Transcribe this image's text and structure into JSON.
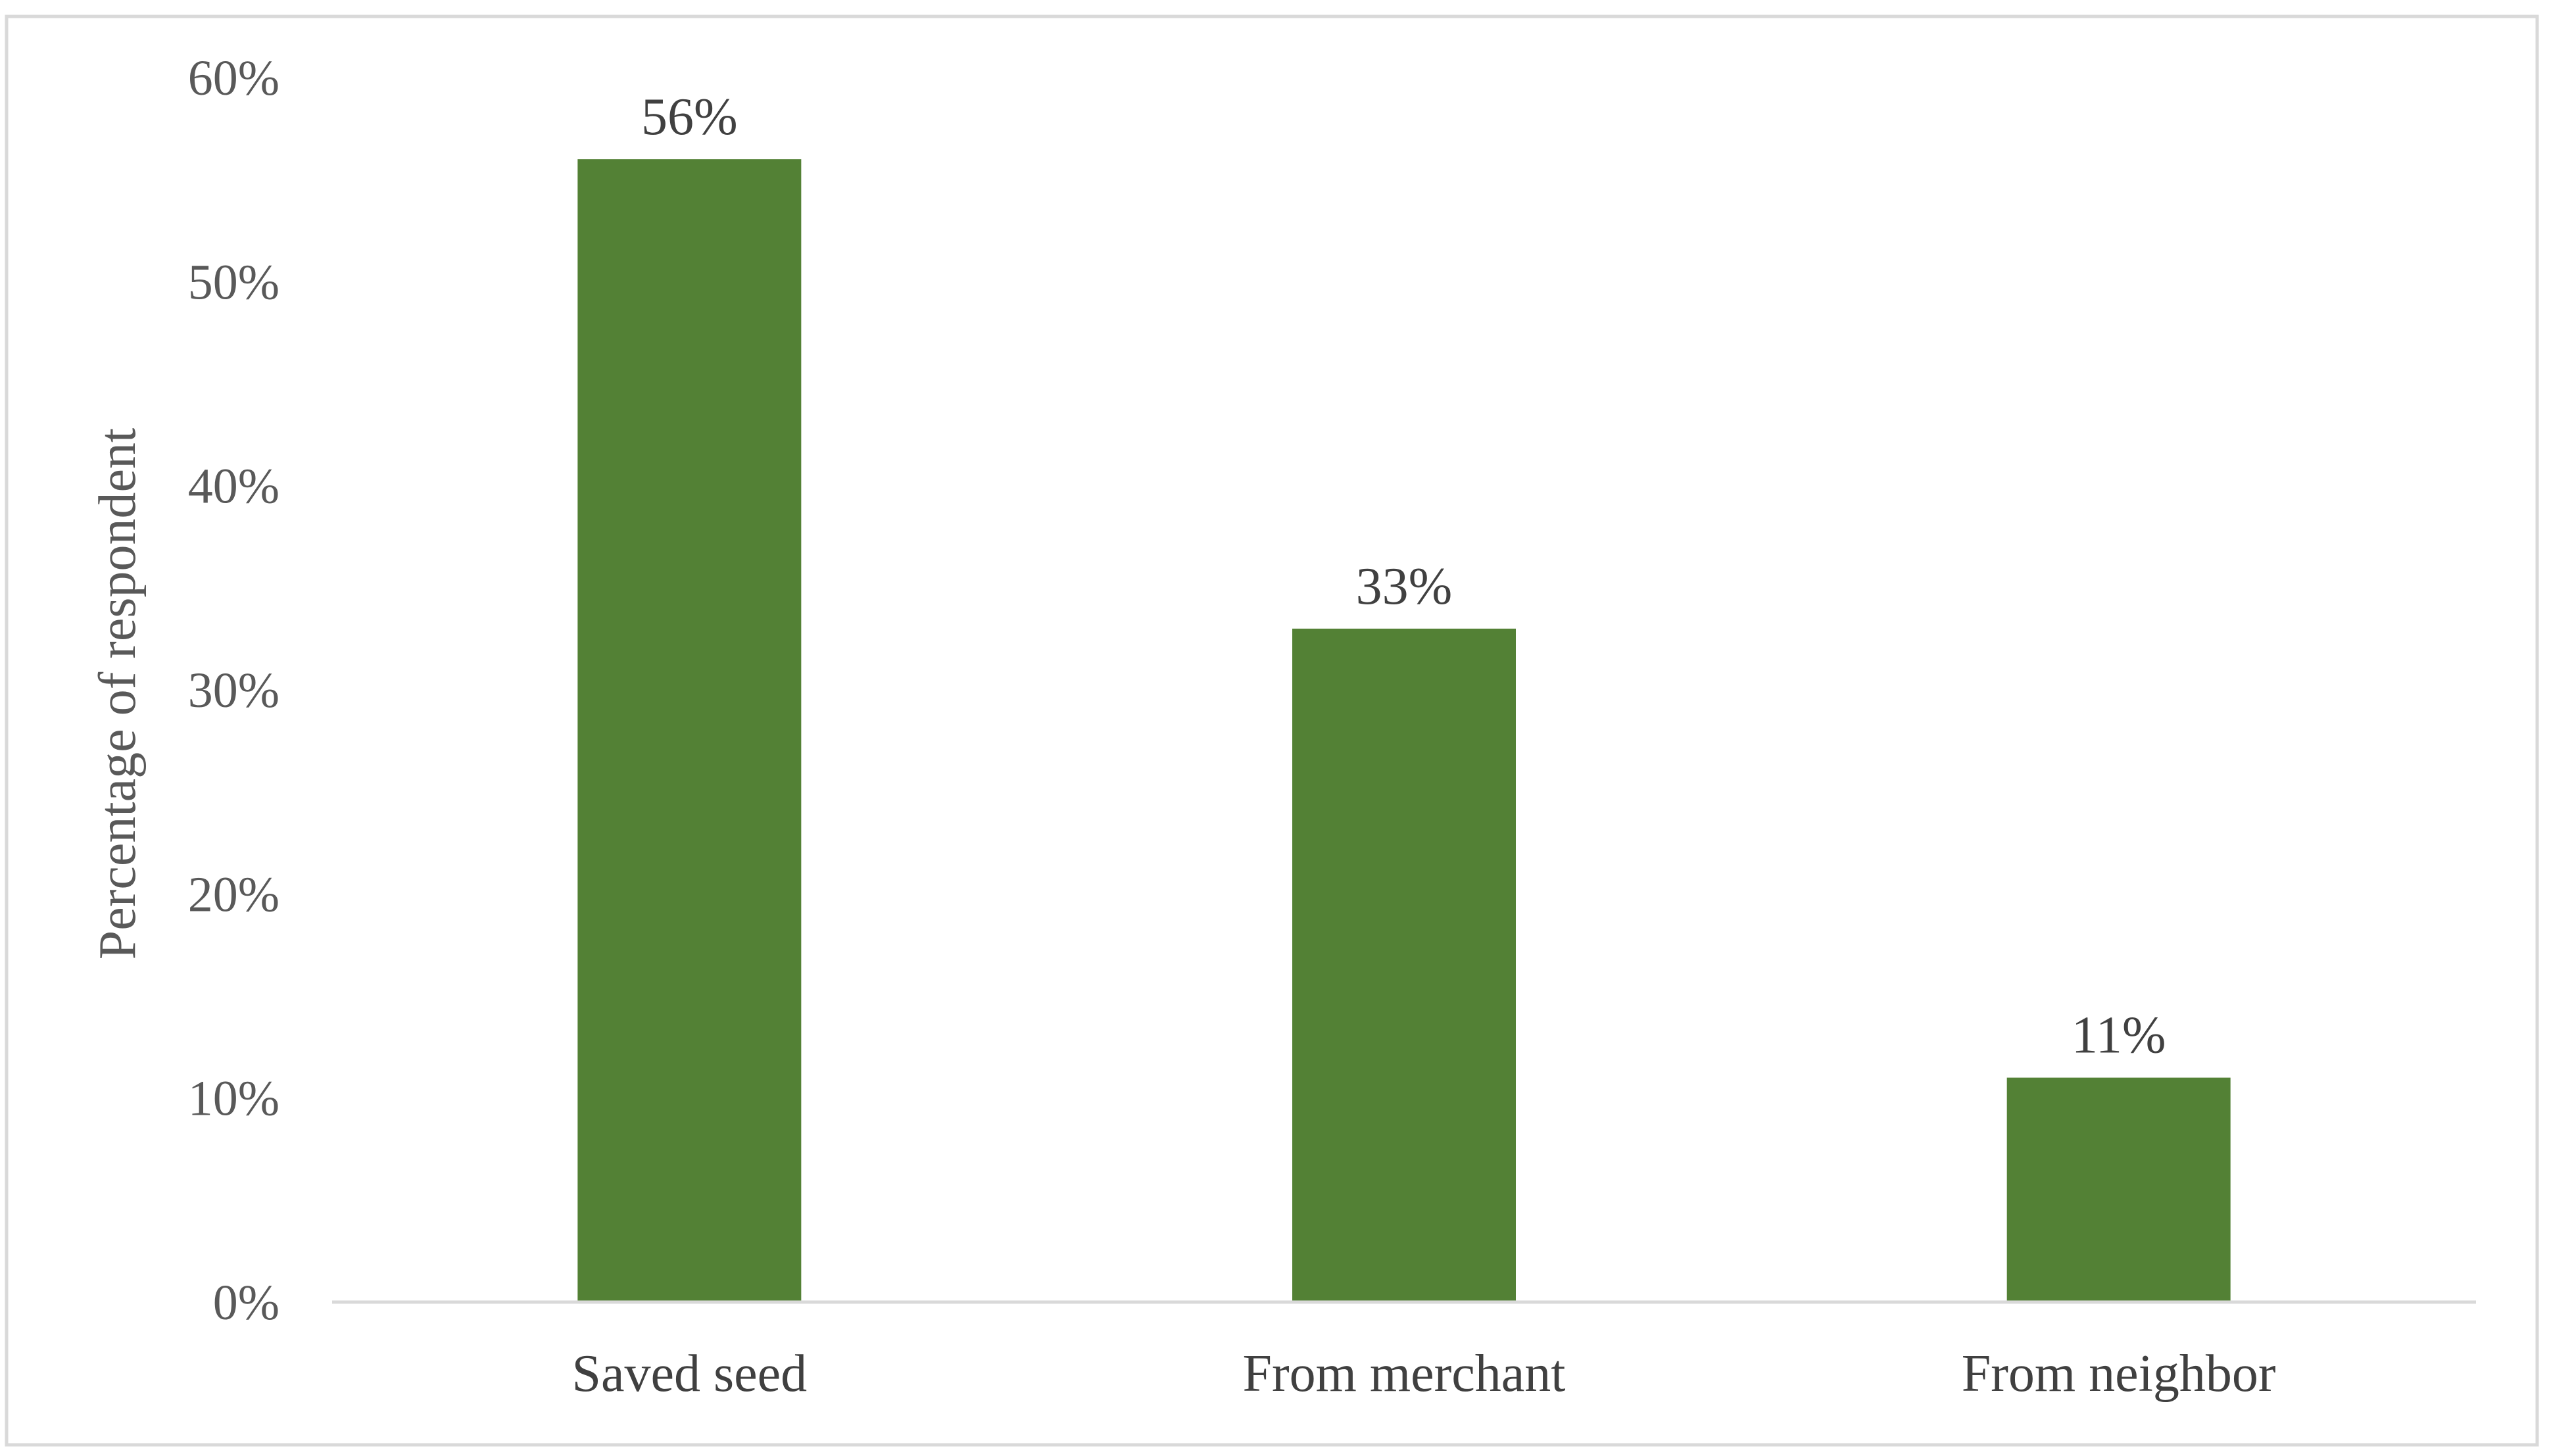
{
  "chart_data": {
    "type": "bar",
    "categories": [
      "Saved seed",
      "From merchant",
      "From neighbor"
    ],
    "values": [
      56,
      33,
      11
    ],
    "value_labels": [
      "56%",
      "33%",
      "11%"
    ],
    "ylabel": "Percentage of respondent",
    "xlabel": "",
    "ylim": [
      0,
      60
    ],
    "yticks": [
      0,
      10,
      20,
      30,
      40,
      50,
      60
    ],
    "ytick_labels": [
      "0%",
      "10%",
      "20%",
      "30%",
      "40%",
      "50%",
      "60%"
    ],
    "grid": false,
    "legend": "none",
    "bar_color": "#538135",
    "axis_color": "#d9d9d9",
    "border_color": "#d9d9d9"
  }
}
